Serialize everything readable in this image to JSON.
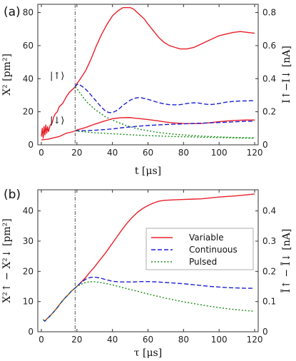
{
  "chart_data": [
    {
      "type": "line",
      "panel_label": "(a)",
      "xlabel": "t [μs]",
      "ylabel_left": "X² [pm²]",
      "ylabel_right": "I↑−I↓ [nA]",
      "xlim": [
        -2,
        122
      ],
      "ylim": [
        0,
        85
      ],
      "y2lim": [
        0,
        0.85
      ],
      "x_ticks": [
        0,
        20,
        40,
        60,
        80,
        100,
        120
      ],
      "y_ticks": [
        0,
        20,
        40,
        60,
        80
      ],
      "y2_ticks": [
        "0",
        "0.2",
        "0.4",
        "0.6",
        "0.8"
      ],
      "vline_x": 19,
      "annotations": [
        {
          "text": "|↑⟩",
          "x": 13,
          "y": 40
        },
        {
          "text": "|↓⟩",
          "x": 13,
          "y": 13
        }
      ],
      "series": [
        {
          "style": "solid",
          "color": "#e8202a",
          "group": "up",
          "x": [
            0,
            0.5,
            1,
            1.5,
            2,
            2.5,
            3,
            3.5,
            4,
            5,
            6,
            7,
            8,
            9,
            10,
            12,
            14,
            16,
            18,
            19,
            20,
            22,
            25,
            28,
            31,
            34,
            37,
            40,
            43,
            46,
            48,
            50,
            52,
            54,
            56,
            58,
            60,
            63,
            66,
            69,
            72,
            75,
            78,
            80,
            82,
            84,
            86,
            88,
            90,
            93,
            96,
            100,
            104,
            108,
            112,
            116,
            120
          ],
          "y": [
            5,
            10,
            4,
            11,
            6,
            12,
            7,
            11,
            8,
            12,
            13,
            17,
            19,
            20,
            23,
            25,
            29,
            32,
            34,
            35,
            37,
            40,
            45,
            52,
            60,
            67,
            73,
            78,
            81,
            83,
            83,
            83,
            82,
            80,
            78,
            76,
            73,
            69,
            65,
            62,
            60,
            59,
            58,
            58,
            58,
            58.5,
            59,
            60,
            61,
            62.5,
            64,
            66,
            67,
            68,
            68.5,
            68,
            67.5
          ]
        },
        {
          "style": "dashed",
          "color": "#1f1fd4",
          "group": "up",
          "x": [
            19,
            20,
            21,
            22,
            24,
            26,
            28,
            30,
            32,
            34,
            36,
            38,
            40,
            42,
            44,
            46,
            48,
            50,
            52,
            54,
            56,
            58,
            60,
            63,
            66,
            69,
            72,
            75,
            78,
            80,
            82,
            84,
            86,
            88,
            90,
            93,
            96,
            100,
            104,
            108,
            112,
            116,
            120
          ],
          "y": [
            35,
            36.5,
            36.8,
            36,
            34.5,
            32.5,
            30,
            27.5,
            25,
            22.5,
            20.5,
            19.5,
            19.5,
            20.5,
            22,
            24,
            25.5,
            27,
            28,
            28.5,
            28.5,
            28,
            27.5,
            26.5,
            25.5,
            24.8,
            24.3,
            24.2,
            24.3,
            24.6,
            25,
            25.3,
            25.4,
            25.3,
            25,
            24.5,
            24.4,
            25,
            25.8,
            26.3,
            26.5,
            26.6,
            26.8
          ]
        },
        {
          "style": "dotted",
          "color": "#1a8c1a",
          "group": "up",
          "x": [
            19,
            20,
            22,
            24,
            26,
            28,
            30,
            32,
            34,
            36,
            38,
            40,
            42,
            44,
            46,
            48,
            50,
            53,
            56,
            60,
            65,
            70,
            75,
            80,
            85,
            90,
            95,
            100,
            105,
            110,
            115,
            120
          ],
          "y": [
            35,
            34,
            31,
            28,
            25.5,
            23.5,
            21.5,
            20,
            18.5,
            17,
            16,
            15,
            14,
            13.2,
            12.5,
            11.5,
            11,
            10,
            9.3,
            8.5,
            7.6,
            7,
            6.4,
            6,
            5.6,
            5.3,
            5,
            4.8,
            4.6,
            4.4,
            4.3,
            4.2
          ]
        },
        {
          "style": "solid",
          "color": "#e8202a",
          "group": "down",
          "x": [
            0,
            2,
            4,
            6,
            8,
            10,
            12,
            14,
            16,
            18,
            19,
            20,
            25,
            30,
            35,
            40,
            45,
            50,
            52,
            55,
            60,
            65,
            70,
            75,
            80,
            85,
            90,
            95,
            100,
            105,
            110,
            115,
            120
          ],
          "y": [
            3,
            3.2,
            3.5,
            4,
            4.5,
            5,
            6,
            7,
            7.5,
            8,
            8.5,
            9,
            10.5,
            12.5,
            14.2,
            15.8,
            16.4,
            16.5,
            16.2,
            15.9,
            15.3,
            14.6,
            13.8,
            13.2,
            12.9,
            12.8,
            12.9,
            13.4,
            14,
            14.5,
            14.8,
            15,
            15
          ]
        },
        {
          "style": "dashed",
          "color": "#1f1fd4",
          "group": "down",
          "x": [
            19,
            20,
            25,
            30,
            35,
            40,
            45,
            50,
            55,
            60,
            65,
            70,
            75,
            80,
            85,
            90,
            95,
            100,
            105,
            110,
            115,
            120
          ],
          "y": [
            8.5,
            8.5,
            8.6,
            8.8,
            9.2,
            9.6,
            10.3,
            10.8,
            11.3,
            11.7,
            12,
            12.3,
            12.5,
            12.7,
            12.9,
            13.1,
            13.3,
            13.5,
            13.7,
            14,
            14.2,
            14.3
          ]
        },
        {
          "style": "dotted",
          "color": "#1a8c1a",
          "group": "down",
          "x": [
            19,
            20,
            25,
            30,
            35,
            40,
            45,
            50,
            55,
            60,
            65,
            70,
            75,
            80,
            85,
            90,
            95,
            100,
            105,
            110,
            115,
            120
          ],
          "y": [
            8.5,
            8.3,
            7.8,
            7.3,
            7,
            6.7,
            6.4,
            6.1,
            5.8,
            5.6,
            5.4,
            5.2,
            5,
            4.9,
            4.8,
            4.6,
            4.5,
            4.4,
            4.3,
            4.2,
            4.1,
            4
          ]
        }
      ]
    },
    {
      "type": "line",
      "panel_label": "(b)",
      "xlabel": "τ [μs]",
      "ylabel_left": "X²↑ − X²↓ [pm²]",
      "ylabel_right": "Ī↑ − Ī↓ [nA]",
      "xlim": [
        -2,
        122
      ],
      "ylim": [
        0,
        47
      ],
      "y2lim": [
        0,
        0.47
      ],
      "x_ticks": [
        0,
        20,
        40,
        60,
        80,
        100,
        120
      ],
      "y_ticks": [
        0,
        10,
        20,
        30,
        40
      ],
      "y2_ticks": [
        "0",
        "0.1",
        "0.2",
        "0.3",
        "0.4"
      ],
      "vline_x": 19,
      "legend": {
        "placement": "center-right"
      },
      "series": [
        {
          "name": "Variable",
          "style": "solid",
          "color": "#e8202a",
          "x": [
            1,
            2,
            3,
            5,
            7,
            9,
            11,
            13,
            15,
            17,
            19,
            21,
            23,
            25,
            27,
            30,
            33,
            36,
            39,
            42,
            45,
            48,
            51,
            54,
            57,
            60,
            63,
            66,
            69,
            72,
            76,
            80,
            85,
            90,
            95,
            100,
            105,
            110,
            115,
            120
          ],
          "y": [
            4,
            3.5,
            4.2,
            5.3,
            6.6,
            8,
            9.6,
            11,
            12.2,
            13.5,
            14.5,
            15.6,
            16.8,
            18,
            19.5,
            21.5,
            23.8,
            26,
            28.5,
            31,
            33.5,
            35.8,
            37.8,
            39.5,
            40.8,
            41.8,
            42.6,
            43.2,
            43.5,
            43.6,
            43.7,
            43.8,
            43.9,
            44,
            44.3,
            44.6,
            44.8,
            45,
            45.3,
            45.6
          ]
        },
        {
          "name": "Continuous",
          "style": "dashed",
          "color": "#1f1fd4",
          "x": [
            1,
            2,
            3,
            5,
            7,
            9,
            11,
            13,
            15,
            17,
            19,
            21,
            23,
            25,
            27,
            29,
            31,
            33,
            36,
            40,
            44,
            48,
            52,
            56,
            60,
            65,
            70,
            75,
            80,
            85,
            90,
            95,
            100,
            105,
            110,
            115,
            120
          ],
          "y": [
            4,
            3.5,
            4.2,
            5.3,
            6.6,
            8,
            9.6,
            11,
            12.2,
            13.5,
            14.5,
            15.6,
            16.6,
            17.4,
            17.9,
            18.1,
            18,
            17.8,
            17.3,
            16.7,
            16.5,
            16.5,
            16.5,
            16.6,
            16.6,
            16.5,
            16.3,
            16.1,
            15.9,
            15.6,
            15.3,
            15,
            14.8,
            14.6,
            14.5,
            14.4,
            14.4
          ]
        },
        {
          "name": "Pulsed",
          "style": "dotted",
          "color": "#1a8c1a",
          "x": [
            1,
            2,
            3,
            5,
            7,
            9,
            11,
            13,
            15,
            17,
            19,
            21,
            23,
            25,
            27,
            29,
            31,
            33,
            36,
            40,
            44,
            48,
            52,
            56,
            60,
            65,
            70,
            75,
            80,
            85,
            90,
            95,
            100,
            105,
            110,
            115,
            120
          ],
          "y": [
            4,
            3.5,
            4.2,
            5.3,
            6.6,
            8,
            9.6,
            11,
            12.2,
            13.5,
            14.5,
            15.3,
            15.9,
            16.3,
            16.5,
            16.6,
            16.5,
            16.3,
            16,
            15.5,
            14.9,
            14.3,
            13.7,
            13.1,
            12.5,
            11.8,
            11.1,
            10.5,
            9.9,
            9.4,
            8.9,
            8.4,
            8,
            7.6,
            7.3,
            7,
            6.8
          ]
        }
      ]
    }
  ]
}
